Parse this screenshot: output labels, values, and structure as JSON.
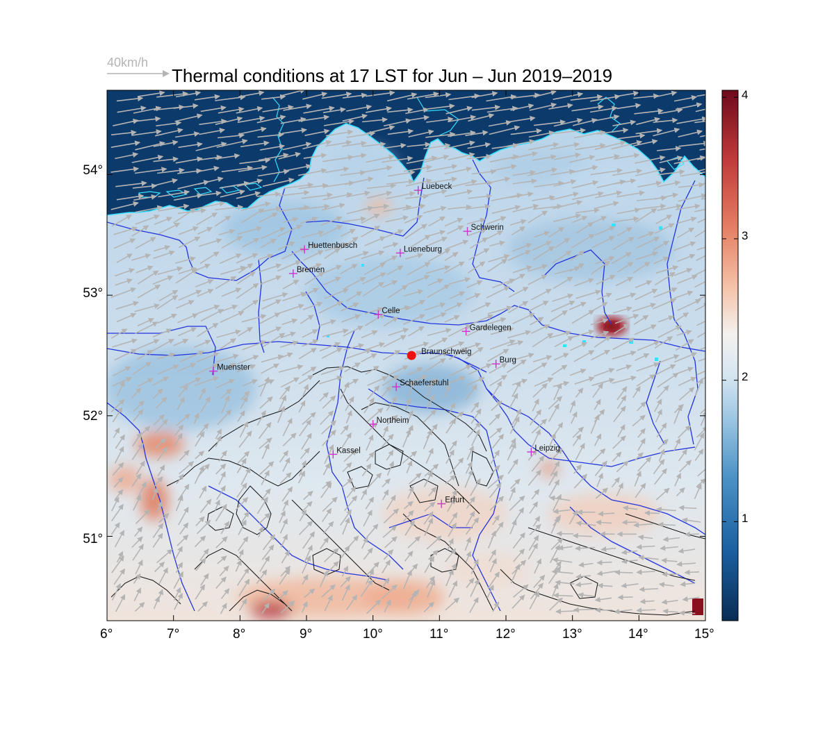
{
  "title": "Thermal conditions at 17 LST for Jun – Jun  2019–2019",
  "wind_reference": {
    "label": "40km/h",
    "speed_kmh": 40
  },
  "map": {
    "lon_range": [
      6,
      15
    ],
    "lat_range": [
      50.3,
      54.7
    ],
    "x_ticks": [
      "6°",
      "7°",
      "8°",
      "9°",
      "10°",
      "11°",
      "12°",
      "13°",
      "14°",
      "15°"
    ],
    "y_ticks": [
      "51°",
      "52°",
      "53°",
      "54°"
    ],
    "colors": {
      "sea": "#0b3a6b",
      "coastline": "#36e0ff",
      "rivers": "#2233dd",
      "contours": "#111111",
      "wind_arrows": "#b4b4b4",
      "city_marker": "#cc33cc",
      "highlight_marker": "#ee1111"
    }
  },
  "colorbar": {
    "min": 0.3,
    "max": 4.05,
    "ticks": [
      "1",
      "2",
      "3",
      "4"
    ],
    "colors": [
      "#0a2c55",
      "#1a5fa0",
      "#4a92c6",
      "#9cc6e2",
      "#d5e5f1",
      "#f4f1ee",
      "#f5c2a8",
      "#e57f64",
      "#c03a3a",
      "#6e0a1c"
    ]
  },
  "cities": [
    {
      "name": "Luebeck",
      "lon": 10.68,
      "lat": 53.87
    },
    {
      "name": "Schwerin",
      "lon": 11.42,
      "lat": 53.53
    },
    {
      "name": "Huettenbusch",
      "lon": 8.97,
      "lat": 53.38
    },
    {
      "name": "Lueneburg",
      "lon": 10.41,
      "lat": 53.35
    },
    {
      "name": "Bremen",
      "lon": 8.8,
      "lat": 53.18
    },
    {
      "name": "Celle",
      "lon": 10.08,
      "lat": 52.84
    },
    {
      "name": "Gardelegen",
      "lon": 11.4,
      "lat": 52.7
    },
    {
      "name": "Braunschweig",
      "lon": 10.58,
      "lat": 52.5,
      "highlight": true
    },
    {
      "name": "Burg",
      "lon": 11.85,
      "lat": 52.43
    },
    {
      "name": "Muenster",
      "lon": 7.6,
      "lat": 52.37
    },
    {
      "name": "Schaeferstuhl",
      "lon": 10.35,
      "lat": 52.24
    },
    {
      "name": "Northeim",
      "lon": 10.0,
      "lat": 51.93
    },
    {
      "name": "Kassel",
      "lon": 9.4,
      "lat": 51.68
    },
    {
      "name": "Leipzig",
      "lon": 12.38,
      "lat": 51.7
    },
    {
      "name": "Erfurt",
      "lon": 11.03,
      "lat": 51.27
    }
  ]
}
